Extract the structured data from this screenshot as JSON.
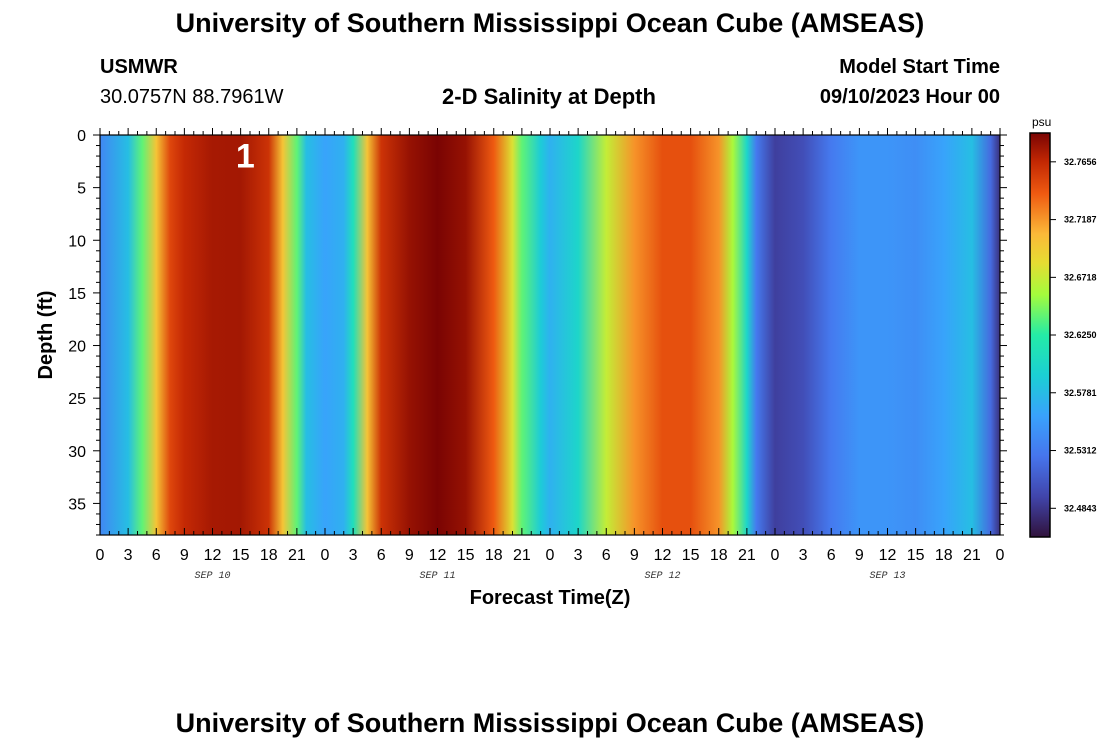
{
  "header": {
    "title": "University of Southern Mississippi Ocean Cube (AMSEAS)",
    "station_name": "USMWR",
    "station_coords": "30.0757N  88.7961W",
    "subtitle": "2-D Salinity at Depth",
    "model_start_label": "Model Start Time",
    "model_start_value": "09/10/2023 Hour 00"
  },
  "footer": {
    "title": "University of Southern Mississippi Ocean Cube (AMSEAS)"
  },
  "chart_data": {
    "type": "heatmap",
    "title": "2-D Salinity at Depth",
    "xlabel": "Forecast Time(Z)",
    "ylabel": "Depth (ft)",
    "units": "psu",
    "x_hours_range": [
      0,
      96
    ],
    "y_depth_range": [
      0,
      38
    ],
    "x_tick_labels": [
      "0",
      "3",
      "6",
      "9",
      "12",
      "15",
      "18",
      "21",
      "0",
      "3",
      "6",
      "9",
      "12",
      "15",
      "18",
      "21",
      "0",
      "3",
      "6",
      "9",
      "12",
      "15",
      "18",
      "21",
      "0",
      "3",
      "6",
      "9",
      "12",
      "15",
      "18",
      "21",
      "0"
    ],
    "y_ticks": [
      0,
      5,
      10,
      15,
      20,
      25,
      30,
      35
    ],
    "date_labels": [
      {
        "label": "SEP 10",
        "hour": 12
      },
      {
        "label": "SEP 11",
        "hour": 36
      },
      {
        "label": "SEP 12",
        "hour": 60
      },
      {
        "label": "SEP 13",
        "hour": 84
      }
    ],
    "colorbar_ticks": [
      "32.7656",
      "32.7187",
      "32.6718",
      "32.6250",
      "32.5781",
      "32.5312",
      "32.4843"
    ],
    "colorbar_range": [
      32.461,
      32.789
    ],
    "salinity_profile": {
      "hours": [
        0,
        3,
        4.5,
        6,
        7.5,
        9,
        12,
        15,
        18,
        19.5,
        21,
        22,
        24,
        26,
        27,
        28.5,
        30,
        33,
        36,
        39,
        42,
        44,
        45,
        47,
        48,
        51,
        54,
        57,
        60,
        63,
        66,
        67.5,
        69,
        70,
        72,
        75,
        78,
        81,
        84,
        87,
        90,
        93,
        95,
        96
      ],
      "salinity": [
        32.54,
        32.58,
        32.64,
        32.7,
        32.75,
        32.765,
        32.775,
        32.776,
        32.76,
        32.7,
        32.64,
        32.58,
        32.56,
        32.57,
        32.61,
        32.7,
        32.76,
        32.78,
        32.789,
        32.78,
        32.74,
        32.68,
        32.64,
        32.59,
        32.57,
        32.6,
        32.67,
        32.72,
        32.745,
        32.745,
        32.72,
        32.66,
        32.6,
        32.53,
        32.49,
        32.5,
        32.53,
        32.55,
        32.55,
        32.545,
        32.56,
        32.58,
        32.52,
        32.48
      ]
    },
    "annotation": {
      "text": "1",
      "hour": 15.5,
      "depth": 0.8
    }
  }
}
